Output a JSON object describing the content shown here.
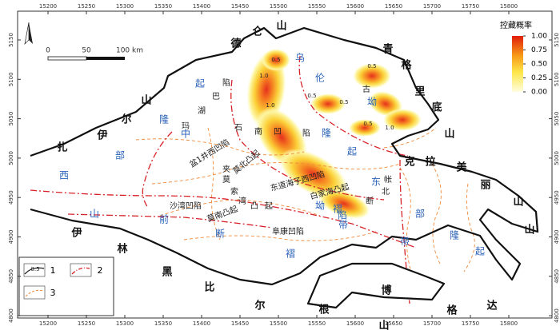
{
  "x_ticks": [
    15200,
    15250,
    15300,
    15350,
    15400,
    15450,
    15500,
    15550,
    15600,
    15650,
    15700,
    15750,
    15800
  ],
  "y_ticks": [
    5150,
    5100,
    5050,
    5000,
    4950,
    4900,
    4850,
    4800
  ],
  "scale_bar": {
    "labels": [
      "0",
      "50",
      "100 km"
    ]
  },
  "colorbar": {
    "title": "控藏概率",
    "ticks": [
      {
        "value": 1,
        "label": "1.00"
      },
      {
        "value": 0.75,
        "label": "0.75"
      },
      {
        "value": 0.5,
        "label": "0.50"
      },
      {
        "value": 0.25,
        "label": "0.25"
      },
      {
        "value": 0,
        "label": "0.00"
      }
    ]
  },
  "legend": {
    "items": [
      "1",
      "2",
      "3"
    ],
    "symbol_label": "0.5"
  },
  "outer_labels": [
    "德",
    "仑",
    "山",
    "青",
    "格",
    "里",
    "底",
    "山",
    "克",
    "拉",
    "美",
    "丽",
    "山",
    "山",
    "达",
    "格",
    "博",
    "根",
    "山",
    "尔",
    "比",
    "黑",
    "林",
    "伊",
    "山",
    "尔",
    "伊",
    "扎"
  ],
  "structure_labels": [
    "乌",
    "伦",
    "坳",
    "隆",
    "起",
    "起",
    "隆",
    "中",
    "部",
    "西",
    "山",
    "前",
    "断",
    "褶",
    "东",
    "坳",
    "陷",
    "褶",
    "带",
    "部",
    "隆",
    "起",
    "带"
  ],
  "place_labels": [
    "陷",
    "巴",
    "湖",
    "玛",
    "古",
    "石",
    "南",
    "凹",
    "陷",
    "盆1井西凹陷",
    "夹",
    "莫北凸起",
    "东道海子西凹陷",
    "白家海凸起",
    "帐",
    "北",
    "断",
    "莫",
    "索",
    "湾",
    "凸",
    "起",
    "沙湾凹陷",
    "莫南凸起",
    "阜康凹陷"
  ],
  "contour_labels": [
    "0.5",
    "0.5",
    "1.0",
    "1.0",
    "0.5",
    "0.5",
    "1.0",
    "0.5"
  ]
}
